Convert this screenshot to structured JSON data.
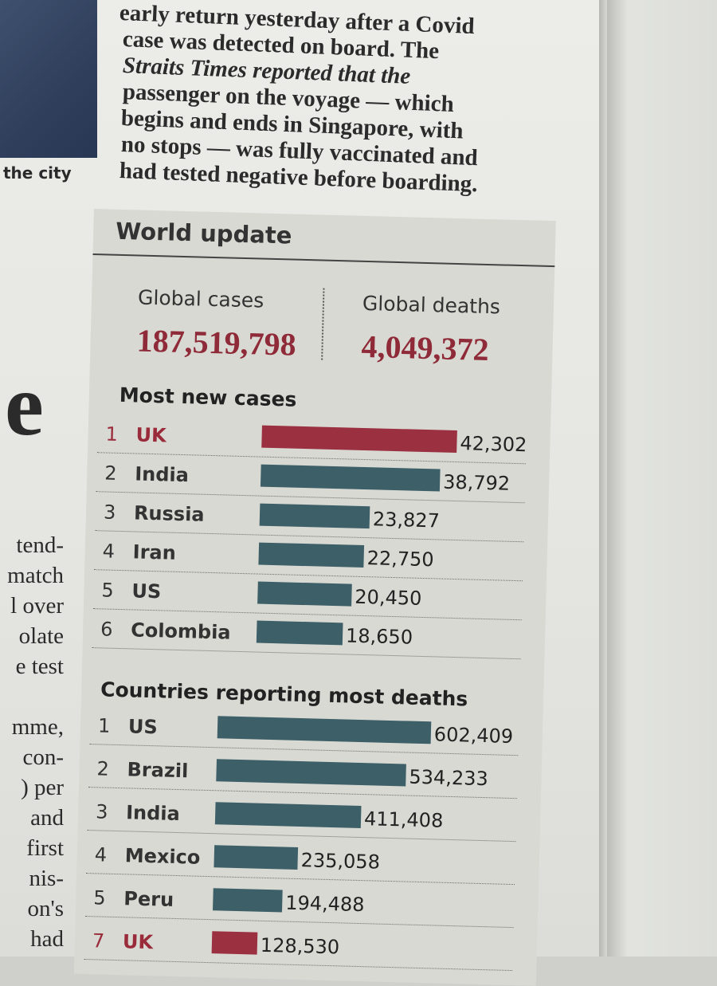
{
  "article": {
    "lines": [
      "early return yesterday after a Covid",
      "case was detected on board. The",
      "Straits Times reported that the",
      "passenger on the voyage — which",
      "begins and ends in Singapore, with",
      "no stops — was fully vaccinated and",
      "had tested negative before boarding."
    ],
    "photo_caption": "the city",
    "headline_fragment": "e",
    "left_column_fragments": [
      "tend-",
      "match",
      "l over",
      "olate",
      "e test",
      "",
      "mme,",
      "con-",
      ") per",
      "and",
      "first",
      "nis-",
      "on's",
      "had"
    ]
  },
  "panel": {
    "title": "World update",
    "global_cases_label": "Global cases",
    "global_cases_value": "187,519,798",
    "global_deaths_label": "Global deaths",
    "global_deaths_value": "4,049,372",
    "colors": {
      "highlight": "#9a3040",
      "normal": "#3d5f68"
    }
  },
  "chart_data": [
    {
      "type": "bar",
      "title": "Most new cases",
      "orientation": "horizontal",
      "rows": [
        {
          "rank": "1",
          "country": "UK",
          "value": 42302,
          "label": "42,302",
          "highlight": true
        },
        {
          "rank": "2",
          "country": "India",
          "value": 38792,
          "label": "38,792",
          "highlight": false
        },
        {
          "rank": "3",
          "country": "Russia",
          "value": 23827,
          "label": "23,827",
          "highlight": false
        },
        {
          "rank": "4",
          "country": "Iran",
          "value": 22750,
          "label": "22,750",
          "highlight": false
        },
        {
          "rank": "5",
          "country": "US",
          "value": 20450,
          "label": "20,450",
          "highlight": false
        },
        {
          "rank": "6",
          "country": "Colombia",
          "value": 18650,
          "label": "18,650",
          "highlight": false
        }
      ]
    },
    {
      "type": "bar",
      "title": "Countries reporting most deaths",
      "orientation": "horizontal",
      "rows": [
        {
          "rank": "1",
          "country": "US",
          "value": 602409,
          "label": "602,409",
          "highlight": false
        },
        {
          "rank": "2",
          "country": "Brazil",
          "value": 534233,
          "label": "534,233",
          "highlight": false
        },
        {
          "rank": "3",
          "country": "India",
          "value": 411408,
          "label": "411,408",
          "highlight": false
        },
        {
          "rank": "4",
          "country": "Mexico",
          "value": 235058,
          "label": "235,058",
          "highlight": false
        },
        {
          "rank": "5",
          "country": "Peru",
          "value": 194488,
          "label": "194,488",
          "highlight": false
        },
        {
          "rank": "7",
          "country": "UK",
          "value": 128530,
          "label": "128,530",
          "highlight": true
        }
      ]
    }
  ]
}
